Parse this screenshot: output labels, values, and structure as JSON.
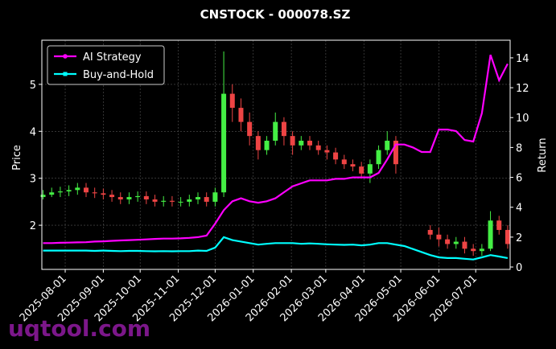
{
  "chart_data": {
    "type": "candlestick",
    "title": "CNSTOCK - 000078.SZ",
    "y_label": "Price",
    "y2_label": "Return",
    "watermark": "uqtool.com",
    "legend": "upper left",
    "grid": true,
    "up_color": "#44ee44",
    "down_color": "#ee4444",
    "xlim": [
      "2025-07-13",
      "2026-07-29"
    ],
    "xticks": [
      "2025-08-01",
      "2025-09-01",
      "2025-10-01",
      "2025-11-01",
      "2025-12-01",
      "2026-01-01",
      "2026-02-01",
      "2026-03-01",
      "2026-04-01",
      "2026-05-01",
      "2026-06-01",
      "2026-07-01"
    ],
    "ylim": [
      1.06,
      5.94
    ],
    "yticks": [
      2,
      3,
      4,
      5
    ],
    "y2lim": [
      -0.16,
      15.18
    ],
    "y2ticks": [
      0,
      2,
      4,
      6,
      8,
      10,
      12,
      14
    ],
    "x": [
      "2025-07-14",
      "2025-07-21",
      "2025-07-28",
      "2025-08-04",
      "2025-08-11",
      "2025-08-18",
      "2025-08-25",
      "2025-09-01",
      "2025-09-08",
      "2025-09-15",
      "2025-09-22",
      "2025-09-29",
      "2025-10-06",
      "2025-10-13",
      "2025-10-20",
      "2025-10-27",
      "2025-11-03",
      "2025-11-10",
      "2025-11-17",
      "2025-11-24",
      "2025-12-01",
      "2025-12-08",
      "2025-12-15",
      "2025-12-22",
      "2025-12-29",
      "2026-01-05",
      "2026-01-12",
      "2026-01-19",
      "2026-01-26",
      "2026-02-02",
      "2026-02-09",
      "2026-02-16",
      "2026-02-23",
      "2026-03-02",
      "2026-03-09",
      "2026-03-16",
      "2026-03-23",
      "2026-03-30",
      "2026-04-06",
      "2026-04-13",
      "2026-04-20",
      "2026-04-27",
      "2026-05-04",
      "2026-05-11",
      "2026-05-18",
      "2026-05-25",
      "2026-06-01",
      "2026-06-08",
      "2026-06-15",
      "2026-06-22",
      "2026-06-29",
      "2026-07-06",
      "2026-07-13",
      "2026-07-20",
      "2026-07-27"
    ],
    "open": [
      2.6,
      2.65,
      2.7,
      2.72,
      2.75,
      2.8,
      2.7,
      2.68,
      2.65,
      2.6,
      2.55,
      2.6,
      2.62,
      2.55,
      2.5,
      2.52,
      2.5,
      2.5,
      2.55,
      2.6,
      2.5,
      2.7,
      4.8,
      4.5,
      4.2,
      3.9,
      3.6,
      3.8,
      4.2,
      3.9,
      3.7,
      3.8,
      3.7,
      3.6,
      3.55,
      3.4,
      3.3,
      3.25,
      3.1,
      3.3,
      3.6,
      3.8,
      null,
      null,
      null,
      1.9,
      1.8,
      1.7,
      1.6,
      1.65,
      1.5,
      1.45,
      1.5,
      2.1,
      1.9
    ],
    "high": [
      2.75,
      2.8,
      2.82,
      2.85,
      2.9,
      2.9,
      2.8,
      2.78,
      2.75,
      2.7,
      2.7,
      2.72,
      2.72,
      2.65,
      2.62,
      2.62,
      2.6,
      2.65,
      2.7,
      2.7,
      2.8,
      5.7,
      5.0,
      4.7,
      4.4,
      4.0,
      3.9,
      4.4,
      4.3,
      4.0,
      3.9,
      3.9,
      3.8,
      3.7,
      3.65,
      3.5,
      3.4,
      3.35,
      3.4,
      3.7,
      4.0,
      3.9,
      null,
      null,
      null,
      2.0,
      1.95,
      1.8,
      1.75,
      1.75,
      1.6,
      1.6,
      2.3,
      2.2,
      2.0
    ],
    "low": [
      2.55,
      2.6,
      2.6,
      2.62,
      2.65,
      2.6,
      2.58,
      2.55,
      2.5,
      2.45,
      2.45,
      2.5,
      2.45,
      2.4,
      2.4,
      2.4,
      2.4,
      2.4,
      2.45,
      2.4,
      2.4,
      2.6,
      4.2,
      4.0,
      3.7,
      3.4,
      3.5,
      3.7,
      3.7,
      3.5,
      3.6,
      3.6,
      3.5,
      3.4,
      3.3,
      3.2,
      3.15,
      3.0,
      2.9,
      3.2,
      3.5,
      3.1,
      null,
      null,
      null,
      1.7,
      1.55,
      1.5,
      1.5,
      1.4,
      1.35,
      1.35,
      1.45,
      1.8,
      1.5
    ],
    "close": [
      2.65,
      2.7,
      2.72,
      2.75,
      2.8,
      2.7,
      2.68,
      2.65,
      2.6,
      2.55,
      2.6,
      2.62,
      2.55,
      2.5,
      2.52,
      2.5,
      2.5,
      2.55,
      2.6,
      2.5,
      2.7,
      4.8,
      4.5,
      4.2,
      3.9,
      3.6,
      3.8,
      4.2,
      3.9,
      3.7,
      3.8,
      3.7,
      3.6,
      3.55,
      3.4,
      3.3,
      3.25,
      3.1,
      3.3,
      3.6,
      3.8,
      3.3,
      null,
      null,
      null,
      1.8,
      1.7,
      1.6,
      1.65,
      1.5,
      1.45,
      1.5,
      2.1,
      1.9,
      1.6
    ],
    "series": [
      {
        "name": "AI Strategy",
        "color": "#ff00ff",
        "axis": "y2",
        "marker": "circle",
        "values": [
          1.6,
          1.6,
          1.62,
          1.63,
          1.65,
          1.66,
          1.7,
          1.72,
          1.75,
          1.78,
          1.8,
          1.82,
          1.85,
          1.88,
          1.9,
          1.9,
          1.92,
          1.95,
          2.0,
          2.1,
          2.9,
          3.8,
          4.4,
          4.6,
          4.4,
          4.3,
          4.4,
          4.6,
          5.0,
          5.4,
          5.6,
          5.8,
          5.8,
          5.8,
          5.9,
          5.9,
          6.0,
          6.0,
          6.0,
          6.3,
          7.2,
          8.2,
          8.2,
          8.0,
          7.7,
          7.7,
          9.2,
          9.2,
          9.1,
          8.5,
          8.4,
          10.3,
          14.2,
          12.5,
          13.6
        ]
      },
      {
        "name": "Buy-and-Hold",
        "color": "#00ffff",
        "axis": "y2",
        "marker": "square",
        "values": [
          1.1,
          1.1,
          1.1,
          1.1,
          1.1,
          1.1,
          1.08,
          1.1,
          1.08,
          1.06,
          1.08,
          1.08,
          1.06,
          1.05,
          1.06,
          1.05,
          1.06,
          1.06,
          1.1,
          1.08,
          1.3,
          2.0,
          1.8,
          1.7,
          1.6,
          1.5,
          1.55,
          1.6,
          1.6,
          1.6,
          1.55,
          1.58,
          1.55,
          1.52,
          1.5,
          1.48,
          1.5,
          1.45,
          1.5,
          1.6,
          1.6,
          1.5,
          1.4,
          1.2,
          1.0,
          0.8,
          0.65,
          0.6,
          0.6,
          0.55,
          0.5,
          0.65,
          0.8,
          0.7,
          0.6
        ]
      }
    ]
  }
}
